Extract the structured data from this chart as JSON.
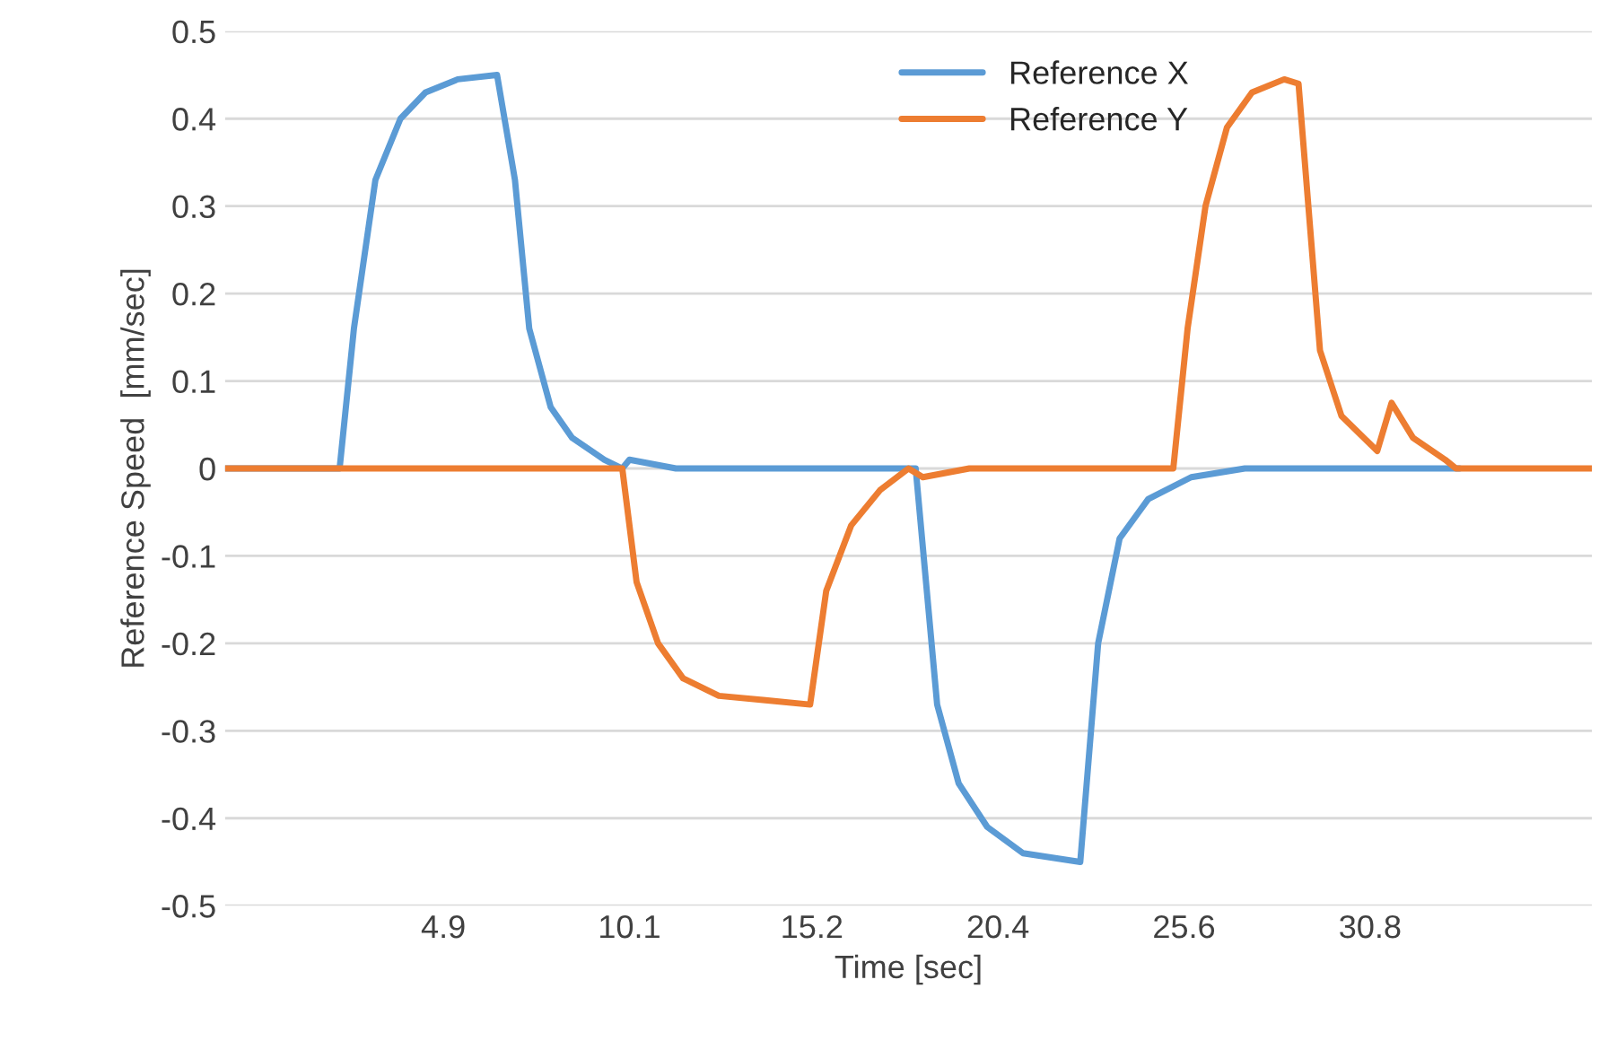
{
  "chart_data": {
    "type": "line",
    "xlabel": "Time [sec]",
    "ylabel": "Reference Speed  [mm/sec]",
    "xlim": [
      -1.2,
      37.0
    ],
    "xticks": [
      4.9,
      10.1,
      15.2,
      20.4,
      25.6,
      30.8
    ],
    "ylim": [
      -0.5,
      0.5
    ],
    "yticks": [
      -0.5,
      -0.4,
      -0.3,
      -0.2,
      -0.1,
      0,
      0.1,
      0.2,
      0.3,
      0.4,
      0.5
    ],
    "grid": "y",
    "legend": "top",
    "marker": "none",
    "line_style": "solid",
    "series": [
      {
        "name": "Reference X",
        "color": "#5b9bd5",
        "x": [
          -1.2,
          2.0,
          2.4,
          3.0,
          3.7,
          4.4,
          5.3,
          6.4,
          6.9,
          7.3,
          7.9,
          8.5,
          9.4,
          9.9,
          10.1,
          11.4,
          18.1,
          18.7,
          19.3,
          20.1,
          21.1,
          22.7,
          23.2,
          23.8,
          24.6,
          25.8,
          27.3,
          33.3
        ],
        "values": [
          0,
          0,
          0.16,
          0.33,
          0.4,
          0.43,
          0.445,
          0.45,
          0.33,
          0.16,
          0.07,
          0.035,
          0.01,
          0,
          0.01,
          0,
          0,
          -0.27,
          -0.36,
          -0.41,
          -0.44,
          -0.45,
          -0.2,
          -0.08,
          -0.035,
          -0.01,
          0,
          0
        ]
      },
      {
        "name": "Reference Y",
        "color": "#ed7d31",
        "x": [
          -1.2,
          9.9,
          10.3,
          10.9,
          11.6,
          12.6,
          13.9,
          15.15,
          15.6,
          16.3,
          17.1,
          17.9,
          18.3,
          19.6,
          25.3,
          25.7,
          26.2,
          26.8,
          27.5,
          28.4,
          28.8,
          29.4,
          30.0,
          31.0,
          31.4,
          32.0,
          32.9,
          33.2,
          37.0
        ],
        "values": [
          0,
          0,
          -0.13,
          -0.2,
          -0.24,
          -0.26,
          -0.265,
          -0.27,
          -0.14,
          -0.065,
          -0.025,
          0,
          -0.01,
          0,
          0,
          0.16,
          0.3,
          0.39,
          0.43,
          0.445,
          0.44,
          0.135,
          0.06,
          0.02,
          0.075,
          0.035,
          0.01,
          0,
          0
        ]
      }
    ]
  }
}
